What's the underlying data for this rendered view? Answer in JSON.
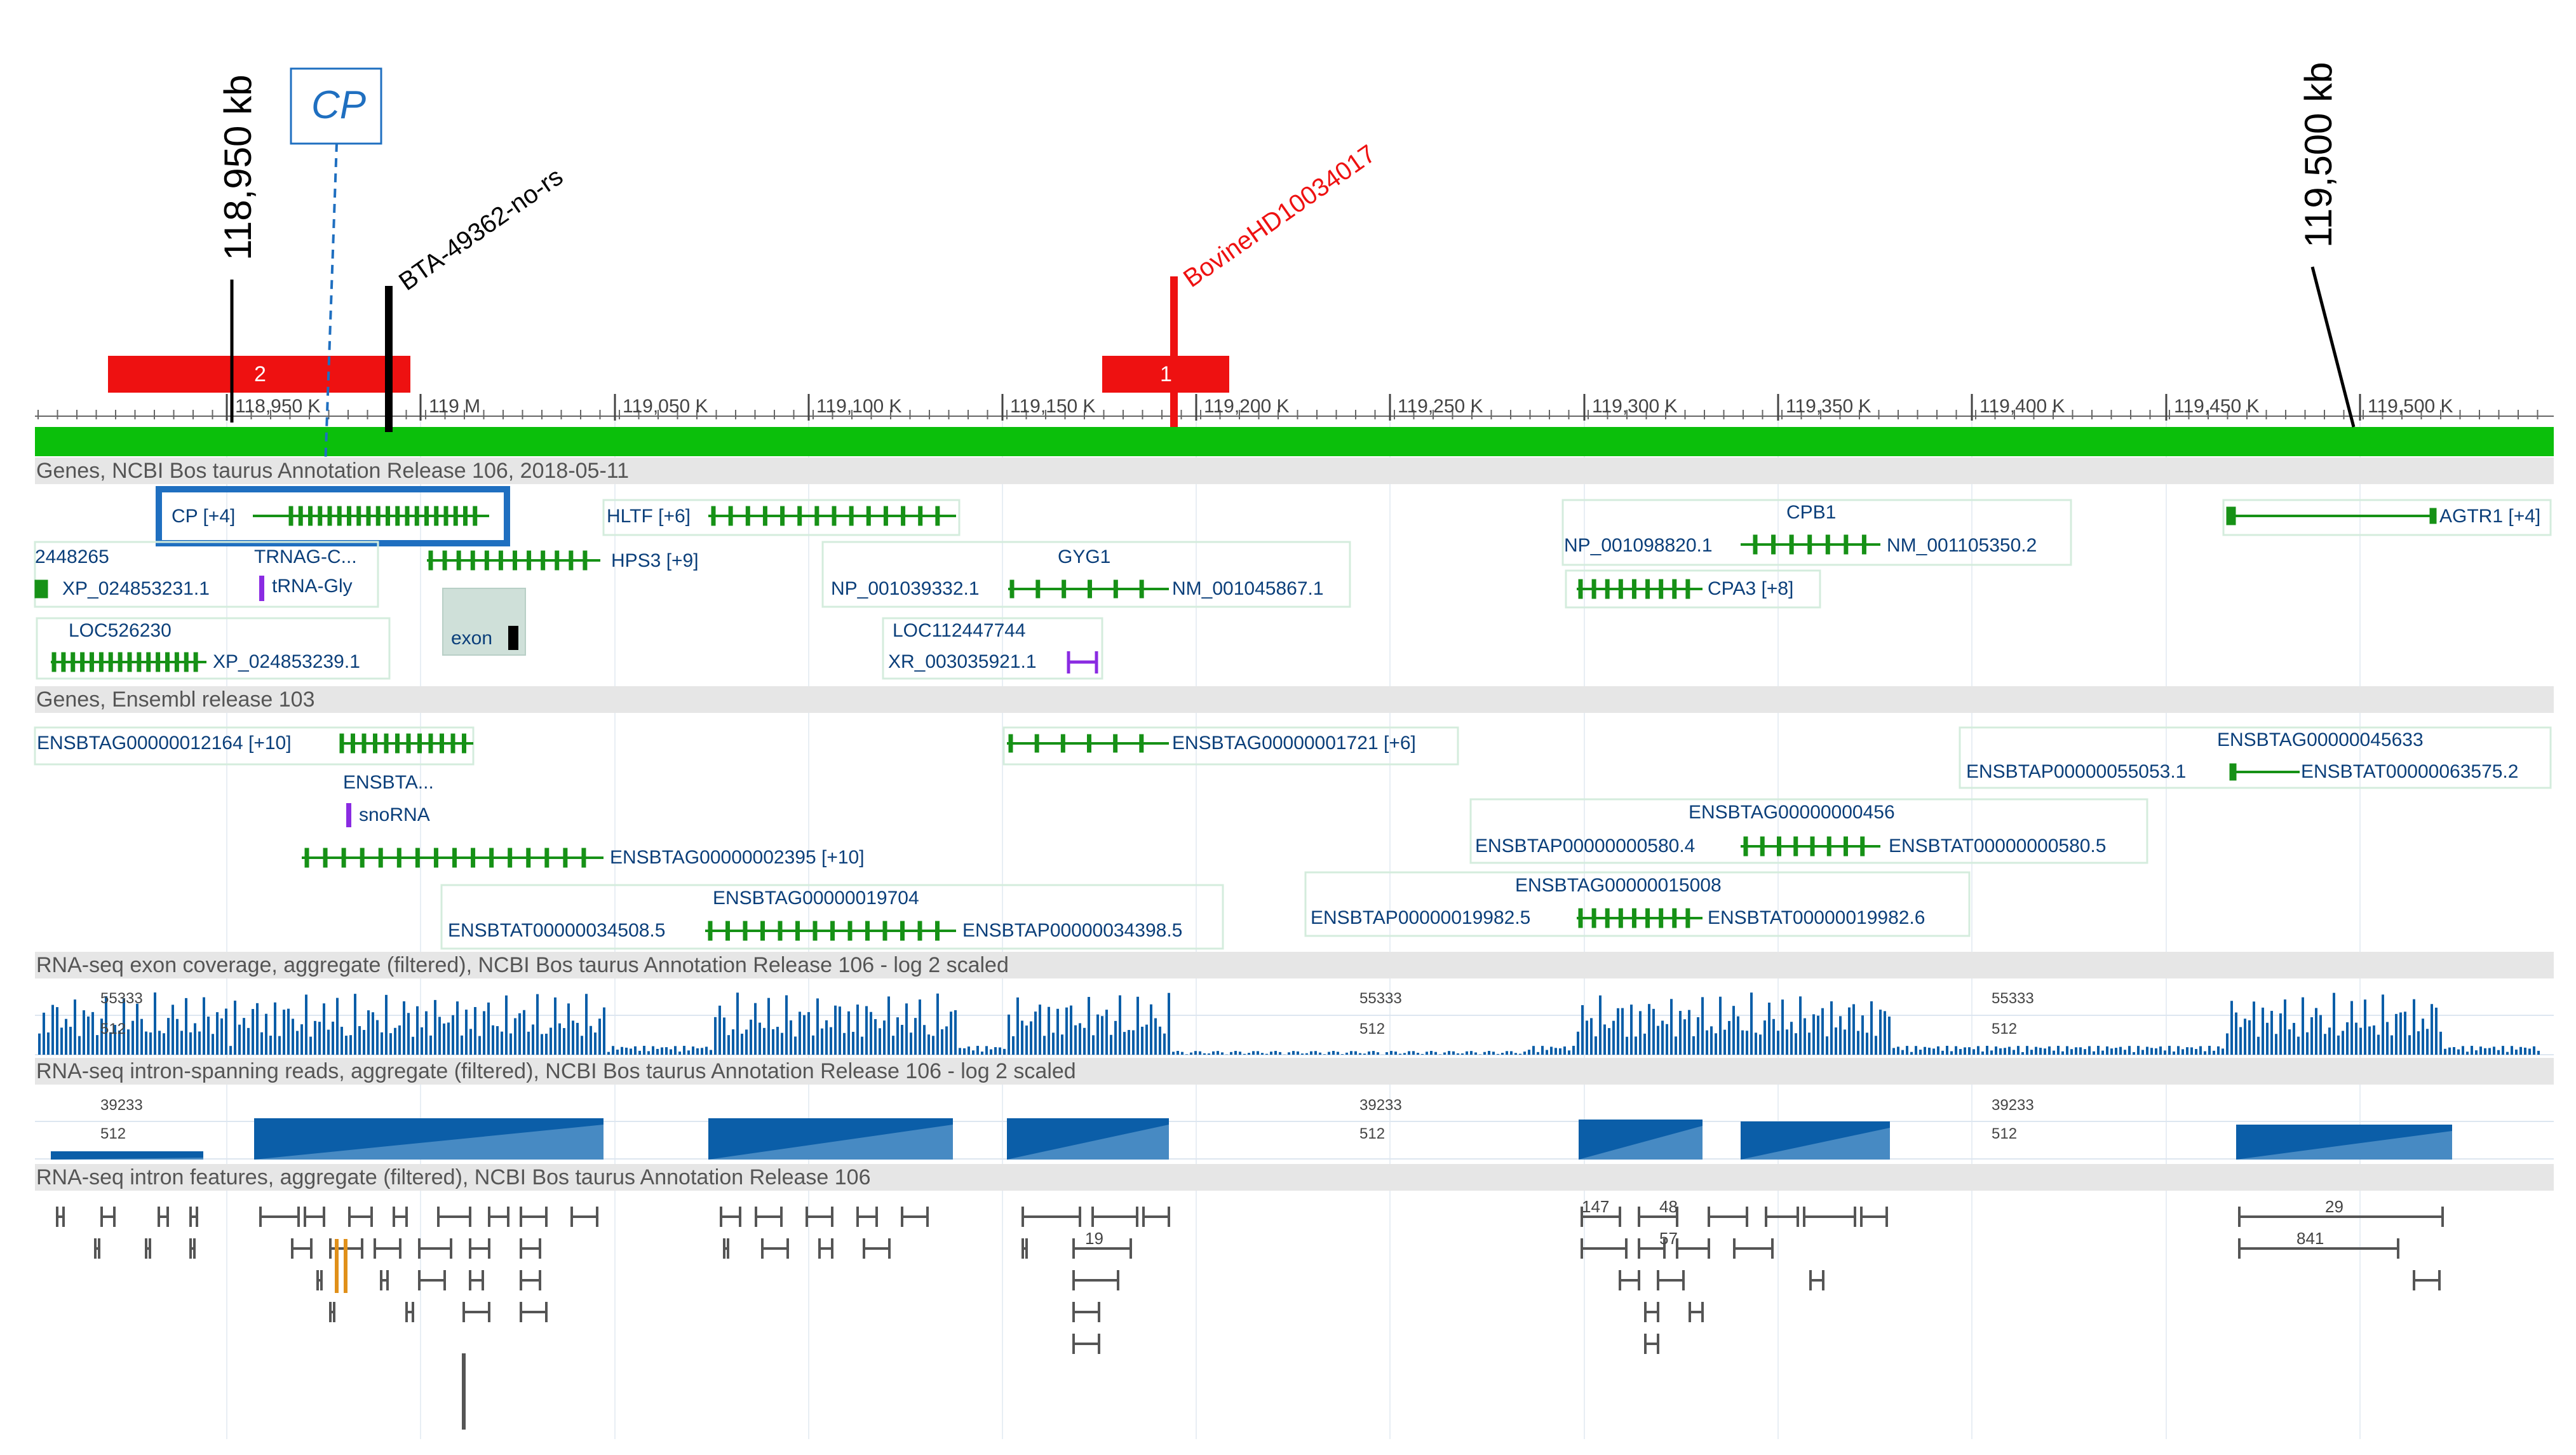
{
  "ruler": {
    "ticks": [
      "118,950 K",
      "119 M",
      "119,050 K",
      "119,100 K",
      "119,150 K",
      "119,200 K",
      "119,250 K",
      "119,300 K",
      "119,350 K",
      "119,400 K",
      "119,450 K",
      "119,500 K"
    ]
  },
  "callouts": {
    "left_kb": "118,950 kb",
    "right_kb": "119,500 kb",
    "cp_box": "CP",
    "marker_black": "BTA-49362-no-rs",
    "marker_red": "BovineHD10034017",
    "region1": "1",
    "region2": "2"
  },
  "colors": {
    "accent_red": "#ee1111",
    "genome_bar": "#0bbf0b",
    "gene_green": "#169116",
    "track_blue": "#0b5ea8",
    "highlight_blue": "#1f6fc0",
    "rna_purple": "#8a2be2",
    "intron_orange": "#e0901a"
  },
  "tracks": {
    "ncbi_header": "Genes, NCBI Bos taurus Annotation Release 106, 2018-05-11",
    "ensembl_header": "Genes, Ensembl release 103",
    "exon_cov_header": "RNA-seq exon coverage, aggregate (filtered), NCBI Bos taurus Annotation Release 106 - log 2 scaled",
    "intron_span_header": "RNA-seq intron-spanning reads, aggregate (filtered), NCBI Bos taurus Annotation Release 106 - log 2 scaled",
    "intron_feat_header": "RNA-seq intron features, aggregate (filtered), NCBI Bos taurus Annotation Release 106"
  },
  "ncbi_labels": {
    "cp": "CP [+4]",
    "hltf": "HLTF [+6]",
    "cpb1": "CPB1",
    "np_098820": "NP_001098820.1",
    "nm_105350": "NM_001105350.2",
    "agtr1": "AGTR1 [+4]",
    "l2448265": "2448265",
    "trnag": "TRNAG-C...",
    "hps3": "HPS3 [+9]",
    "gyg1": "GYG1",
    "np_039332": "NP_001039332.1",
    "nm_045867": "NM_001045867.1",
    "xp_853231": "XP_024853231.1",
    "trna_gly": "tRNA-Gly",
    "cpa3": "CPA3 [+8]",
    "loc526230": "LOC526230",
    "exon": "exon",
    "loc112447744": "LOC112447744",
    "xp_853239": "XP_024853239.1",
    "xr_035921": "XR_003035921.1"
  },
  "ensembl_labels": {
    "g12164": "ENSBTAG00000012164 [+10]",
    "g1721": "ENSBTAG00000001721 [+6]",
    "g45633": "ENSBTAG00000045633",
    "p55053": "ENSBTAP00000055053.1",
    "t63575": "ENSBTAT00000063575.2",
    "ensbta_short": "ENSBTA...",
    "snorna": "snoRNA",
    "g456": "ENSBTAG00000000456",
    "p580": "ENSBTAP00000000580.4",
    "t580": "ENSBTAT00000000580.5",
    "g2395": "ENSBTAG00000002395 [+10]",
    "g15008": "ENSBTAG00000015008",
    "p19982": "ENSBTAP00000019982.5",
    "t19982": "ENSBTAT00000019982.6",
    "g19704": "ENSBTAG00000019704",
    "t34508": "ENSBTAT00000034508.5",
    "p34398": "ENSBTAP00000034398.5"
  },
  "coverage": {
    "exon_max": "55333",
    "exon_mid": "512",
    "span_max": "39233",
    "span_mid": "512"
  },
  "intron_counts": [
    "147",
    "48",
    "57",
    "19",
    "29",
    "841"
  ]
}
